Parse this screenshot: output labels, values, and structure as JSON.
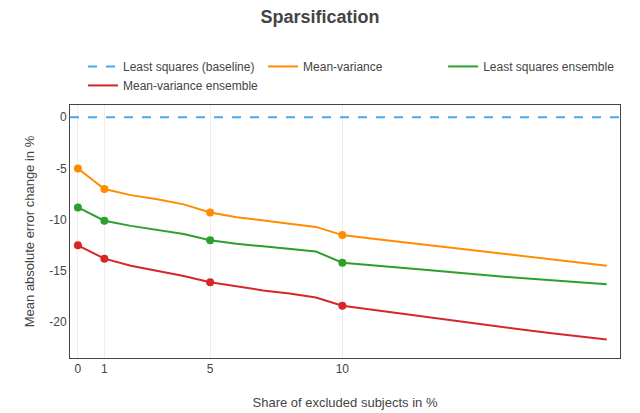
{
  "chart_data": {
    "type": "line",
    "title": "Sparsification",
    "x_label": "Share of excluded subjects in %",
    "y_label": "Mean absolute error change in %",
    "x": [
      0,
      1,
      2,
      3,
      4,
      5,
      6,
      7,
      8,
      9,
      10,
      11,
      12,
      13,
      14,
      15,
      16,
      17,
      18,
      19,
      20
    ],
    "xlim": [
      -0.3,
      20.5
    ],
    "ylim": [
      -23.5,
      1.2
    ],
    "xticks": [
      0,
      1,
      5,
      10
    ],
    "yticks": [
      0,
      -5,
      -10,
      -15,
      -20
    ],
    "grid": "x",
    "legend": "upper right",
    "series": [
      {
        "name": "Least squares (baseline)",
        "color": "#4da6e8",
        "line_style": "dashed",
        "marker": "none",
        "x": [
          -0.3,
          20.5
        ],
        "values": [
          0,
          0
        ]
      },
      {
        "name": "Mean-variance",
        "color": "#ff8c00",
        "line_style": "solid",
        "marker": "circle",
        "values": [
          -5.0,
          -7.0,
          -7.6,
          -8.0,
          -8.5,
          -9.3,
          -9.75,
          -10.1,
          -10.4,
          -10.7,
          -11.5,
          -11.8,
          -12.1,
          -12.4,
          -12.7,
          -13.0,
          -13.3,
          -13.6,
          -13.9,
          -14.2,
          -14.5
        ],
        "marker_x": [
          0,
          1,
          5,
          10
        ],
        "marker_values": [
          -5.0,
          -7.0,
          -9.3,
          -11.5
        ]
      },
      {
        "name": "Least squares ensemble",
        "color": "#2ca02c",
        "line_style": "solid",
        "marker": "circle",
        "values": [
          -8.8,
          -10.1,
          -10.6,
          -11.0,
          -11.4,
          -12.0,
          -12.35,
          -12.6,
          -12.85,
          -13.1,
          -14.2,
          -14.45,
          -14.65,
          -14.85,
          -15.1,
          -15.3,
          -15.55,
          -15.75,
          -15.95,
          -16.1,
          -16.3
        ],
        "marker_x": [
          0,
          1,
          5,
          10
        ],
        "marker_values": [
          -8.8,
          -10.1,
          -12.0,
          -14.2
        ]
      },
      {
        "name": "Mean-variance ensemble",
        "color": "#d62728",
        "line_style": "solid",
        "marker": "circle",
        "values": [
          -12.5,
          -13.8,
          -14.5,
          -15.0,
          -15.5,
          -16.1,
          -16.5,
          -16.9,
          -17.2,
          -17.6,
          -18.4,
          -18.75,
          -19.1,
          -19.45,
          -19.8,
          -20.15,
          -20.5,
          -20.8,
          -21.1,
          -21.4,
          -21.7
        ],
        "marker_x": [
          0,
          1,
          5,
          10
        ],
        "marker_values": [
          -12.5,
          -13.8,
          -16.1,
          -18.4
        ]
      }
    ]
  }
}
